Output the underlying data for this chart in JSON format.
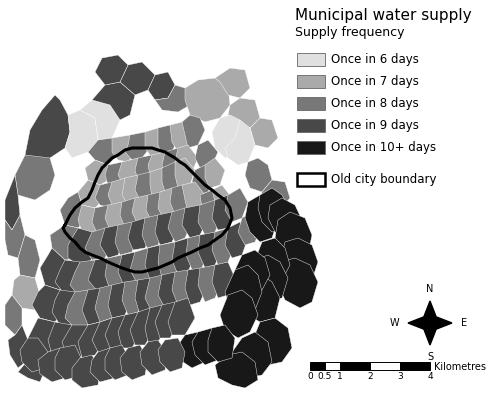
{
  "title": "Municipal water supply",
  "subtitle": "Supply frequency",
  "legend_items": [
    {
      "label": "Once in 6 days",
      "color": "#e0e0e0"
    },
    {
      "label": "Once in 7 days",
      "color": "#aaaaaa"
    },
    {
      "label": "Once in 8 days",
      "color": "#787878"
    },
    {
      "label": "Once in 9 days",
      "color": "#484848"
    },
    {
      "label": "Once in 10+ days",
      "color": "#181818"
    }
  ],
  "boundary_label": "Old city boundary",
  "background_color": "#ffffff",
  "scalebar_label": "Kilometres",
  "title_fontsize": 11,
  "subtitle_fontsize": 9,
  "legend_fontsize": 8.5
}
